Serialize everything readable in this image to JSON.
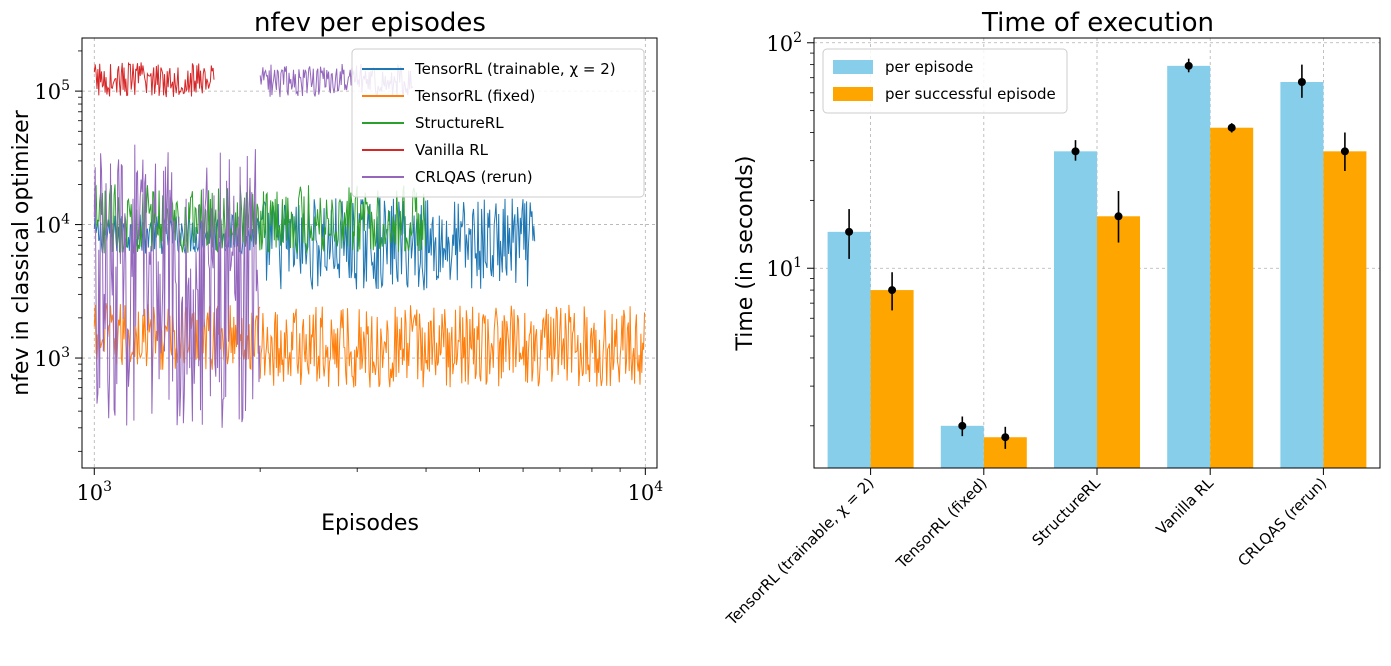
{
  "chart_data": [
    {
      "type": "line",
      "title": "nfev per episodes",
      "xlabel": "Episodes",
      "ylabel": "nfev in classical optimizer",
      "x_scale": "log",
      "y_scale": "log",
      "xlim": [
        950,
        10500
      ],
      "ylim": [
        150,
        250000
      ],
      "x_ticks": [
        {
          "base": "10",
          "exp": "3",
          "value": 1000
        },
        {
          "base": "10",
          "exp": "4",
          "value": 10000
        }
      ],
      "y_ticks": [
        {
          "base": "10",
          "exp": "3",
          "value": 1000
        },
        {
          "base": "10",
          "exp": "4",
          "value": 10000
        },
        {
          "base": "10",
          "exp": "5",
          "value": 100000
        }
      ],
      "grid": true,
      "legend_position": "top-right",
      "series": [
        {
          "name": "TensorRL (trainable, χ = 2)",
          "color": "#1f77b4",
          "segments": [
            {
              "x_start": 1000,
              "x_end": 2000,
              "y_min": 6000,
              "y_max": 12000
            },
            {
              "x_start": 2000,
              "x_end": 6300,
              "y_min": 3200,
              "y_max": 16000
            }
          ]
        },
        {
          "name": "TensorRL (fixed)",
          "color": "#ff7f0e",
          "segments": [
            {
              "x_start": 1000,
              "x_end": 2000,
              "y_min": 800,
              "y_max": 2600
            },
            {
              "x_start": 2000,
              "x_end": 10000,
              "y_min": 600,
              "y_max": 2500
            }
          ]
        },
        {
          "name": "StructureRL",
          "color": "#2ca02c",
          "segments": [
            {
              "x_start": 1000,
              "x_end": 4000,
              "y_min": 6000,
              "y_max": 20000
            }
          ]
        },
        {
          "name": "Vanilla RL",
          "color": "#d62728",
          "segments": [
            {
              "x_start": 1000,
              "x_end": 1650,
              "y_min": 90000,
              "y_max": 165000
            }
          ]
        },
        {
          "name": "CRLQAS (rerun)",
          "color": "#9467bd",
          "segments": [
            {
              "x_start": 1000,
              "x_end": 2000,
              "y_min": 300,
              "y_max": 40000
            },
            {
              "x_start": 2000,
              "x_end": 3800,
              "y_min": 90000,
              "y_max": 160000
            }
          ]
        }
      ]
    },
    {
      "type": "bar",
      "title": "Time of execution",
      "xlabel": "",
      "ylabel": "Time (in seconds)",
      "y_scale": "log",
      "ylim": [
        1.3,
        105
      ],
      "y_ticks": [
        {
          "base": "10",
          "exp": "1",
          "value": 10
        },
        {
          "base": "10",
          "exp": "2",
          "value": 100
        }
      ],
      "grid": true,
      "legend_position": "top-left",
      "categories": [
        "TensorRL (trainable, χ = 2)",
        "TensorRL (fixed)",
        "StructureRL",
        "Vanilla RL",
        "CRLQAS (rerun)"
      ],
      "series": [
        {
          "name": "per episode",
          "color": "#87ceeb",
          "values": [
            14.5,
            2.0,
            33,
            79,
            67
          ],
          "err_low": [
            3.5,
            0.2,
            3,
            5,
            10
          ],
          "err_high": [
            3.8,
            0.2,
            4,
            6,
            13
          ]
        },
        {
          "name": "per successful episode",
          "color": "#ffa500",
          "values": [
            8.0,
            1.78,
            17,
            42,
            33
          ],
          "err_low": [
            1.5,
            0.2,
            4,
            2,
            6
          ],
          "err_high": [
            1.6,
            0.2,
            5,
            2,
            7
          ]
        }
      ]
    }
  ]
}
